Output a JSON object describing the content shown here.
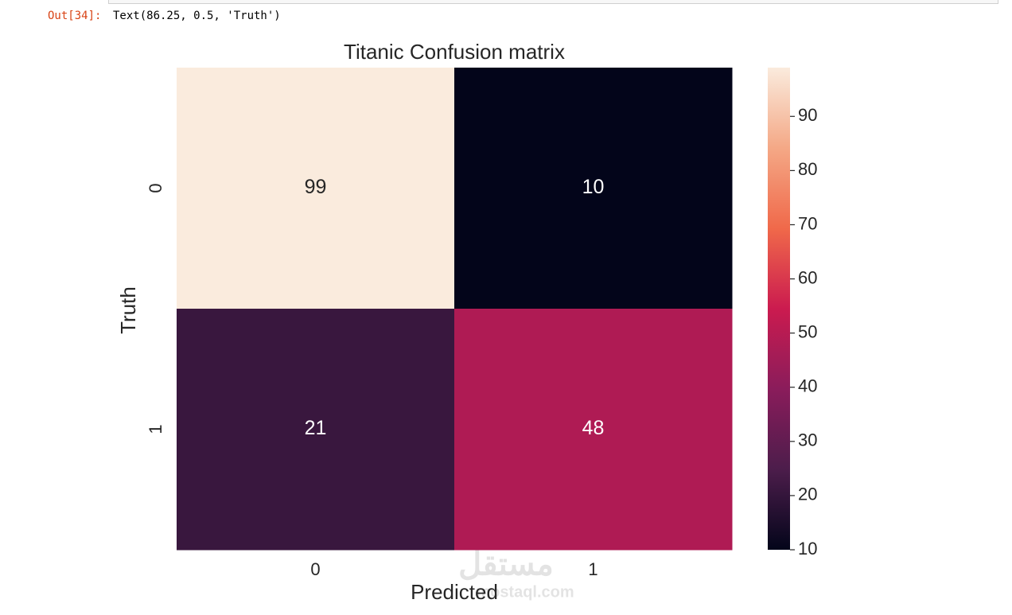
{
  "cell": {
    "prompt": "Out[34]:",
    "output": "Text(86.25, 0.5, 'Truth')"
  },
  "watermark": {
    "text": "مستقل",
    "url": "mostaql.com"
  },
  "chart_data": {
    "type": "heatmap",
    "title": "Titanic Confusion matrix",
    "x_label": "Predicted",
    "y_label": "Truth",
    "x_categories": [
      "0",
      "1"
    ],
    "y_categories": [
      "0",
      "1"
    ],
    "values": [
      [
        99,
        10
      ],
      [
        21,
        48
      ]
    ],
    "clim": [
      10,
      99
    ],
    "cticks": [
      10,
      20,
      30,
      40,
      50,
      60,
      70,
      80,
      90
    ],
    "colormap": [
      "#03051a",
      "#4c1d4b",
      "#8a1c5b",
      "#cb1b4f",
      "#f0694a",
      "#f4a886",
      "#faebdd"
    ]
  }
}
